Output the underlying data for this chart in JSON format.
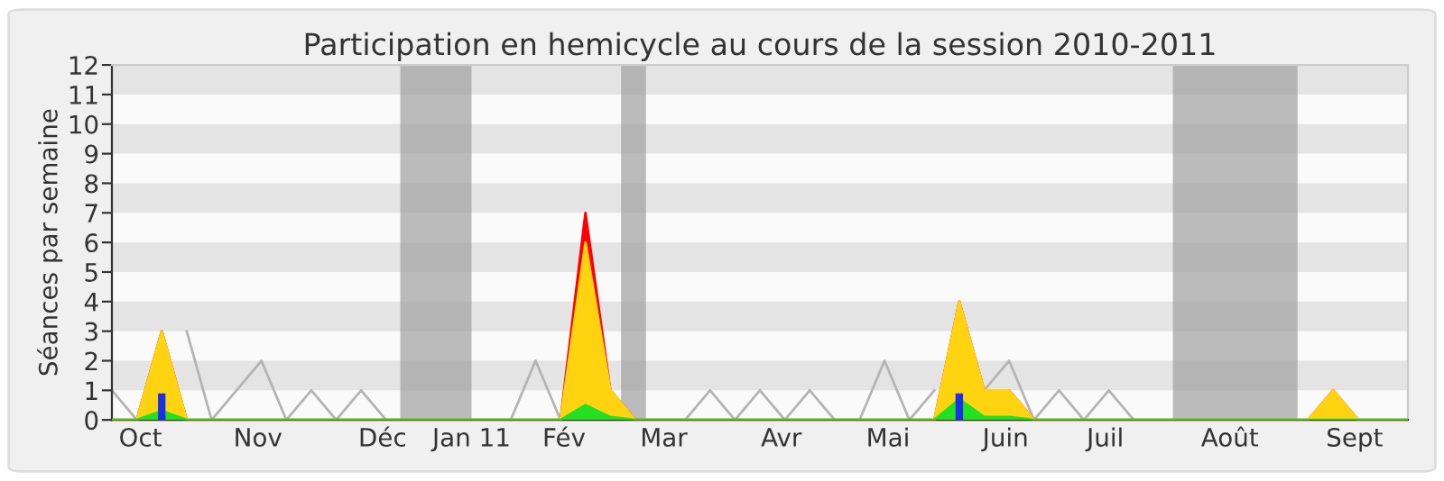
{
  "chart_data": {
    "type": "area",
    "title": "Participation en hemicycle au cours de la session 2010-2011",
    "ylabel": "Séances par semaine",
    "x": [
      "2010-09-27",
      "2010-10-04",
      "2010-10-11",
      "2010-10-18",
      "2010-10-25",
      "2010-11-01",
      "2010-11-08",
      "2010-11-15",
      "2010-11-22",
      "2010-11-29",
      "2010-12-06",
      "2010-12-13",
      "2010-12-20",
      "2010-12-27",
      "2011-01-03",
      "2011-01-10",
      "2011-01-17",
      "2011-01-24",
      "2011-01-31",
      "2011-02-07",
      "2011-02-14",
      "2011-02-21",
      "2011-02-28",
      "2011-03-07",
      "2011-03-14",
      "2011-03-21",
      "2011-03-28",
      "2011-04-04",
      "2011-04-11",
      "2011-04-18",
      "2011-04-25",
      "2011-05-02",
      "2011-05-09",
      "2011-05-16",
      "2011-05-23",
      "2011-05-30",
      "2011-06-06",
      "2011-06-13",
      "2011-06-20",
      "2011-06-27",
      "2011-07-04",
      "2011-07-11",
      "2011-07-18",
      "2011-07-25",
      "2011-08-01",
      "2011-08-08",
      "2011-08-15",
      "2011-08-22",
      "2011-08-29",
      "2011-09-05",
      "2011-09-12",
      "2011-09-19",
      "2011-09-26"
    ],
    "series": [
      {
        "type": "line",
        "color": "#b4b4b4",
        "values": [
          1,
          0,
          null,
          3,
          0,
          1,
          2,
          0,
          1,
          0,
          1,
          0,
          0,
          0,
          0,
          0,
          0,
          2,
          0,
          null,
          0,
          0,
          0,
          0,
          1,
          0,
          1,
          0,
          1,
          0,
          0,
          2,
          0,
          1,
          null,
          1,
          2,
          0,
          1,
          0,
          1,
          0,
          null,
          null,
          null,
          null,
          null,
          null,
          null,
          null,
          null,
          null,
          null
        ]
      },
      {
        "color": "#ff0000",
        "values": [
          0,
          0,
          3,
          0,
          0,
          0,
          0,
          0,
          0,
          0,
          0,
          0,
          0,
          0,
          0,
          0,
          0,
          0,
          0,
          7,
          1,
          0,
          0,
          0,
          0,
          0,
          0,
          0,
          0,
          0,
          0,
          0,
          0,
          0,
          4,
          1,
          1,
          0,
          0,
          0,
          0,
          0,
          0,
          0,
          0,
          0,
          0,
          0,
          0,
          1,
          0,
          0,
          0
        ]
      },
      {
        "color": "#ffd30f",
        "values": [
          0,
          0,
          3,
          0,
          0,
          0,
          0,
          0,
          0,
          0,
          0,
          0,
          0,
          0,
          0,
          0,
          0,
          0,
          0,
          6,
          1,
          0,
          0,
          0,
          0,
          0,
          0,
          0,
          0,
          0,
          0,
          0,
          0,
          0,
          4,
          1,
          1,
          0,
          0,
          0,
          0,
          0,
          0,
          0,
          0,
          0,
          0,
          0,
          0,
          1,
          0,
          0,
          0
        ]
      },
      {
        "color": "#22e022",
        "values": [
          0,
          0,
          0.3,
          0,
          0,
          0,
          0,
          0,
          0,
          0,
          0,
          0,
          0,
          0,
          0,
          0,
          0,
          0,
          0,
          0.5,
          0.1,
          0,
          0,
          0,
          0,
          0,
          0,
          0,
          0,
          0,
          0,
          0,
          0,
          0,
          0.7,
          0.1,
          0.1,
          0,
          0,
          0,
          0,
          0,
          0,
          0,
          0,
          0,
          0,
          0,
          0,
          0,
          0,
          0,
          0
        ]
      },
      {
        "type": "bar",
        "color": "#1a2fe8",
        "values": [
          0,
          0,
          0.9,
          0,
          0,
          0,
          0,
          0,
          0,
          0,
          0,
          0,
          0,
          0,
          0,
          0,
          0,
          0,
          0,
          0,
          0,
          0,
          0,
          0,
          0,
          0,
          0,
          0,
          0,
          0,
          0,
          0,
          0,
          0,
          0.9,
          0,
          0,
          0,
          0,
          0,
          0,
          0,
          0,
          0,
          0,
          0,
          0,
          0,
          0,
          0,
          0,
          0,
          0
        ]
      }
    ],
    "bands": [
      {
        "axis": "x",
        "from": "2010-12-17",
        "to": "2011-01-06",
        "color": "#a0a0a0"
      },
      {
        "axis": "x",
        "from": "2011-02-17",
        "to": "2011-02-24",
        "color": "#a0a0a0"
      },
      {
        "axis": "x",
        "from": "2011-07-22",
        "to": "2011-08-26",
        "color": "#a0a0a0"
      }
    ],
    "xlim": [
      "2010-09-27",
      "2011-09-26"
    ],
    "xticks": [
      {
        "value": "2010-10-05",
        "label": "Oct"
      },
      {
        "value": "2010-11-07",
        "label": "Nov"
      },
      {
        "value": "2010-12-12",
        "label": "Déc"
      },
      {
        "value": "2011-01-06",
        "label": "Jan 11"
      },
      {
        "value": "2011-02-01",
        "label": "Fév"
      },
      {
        "value": "2011-03-01",
        "label": "Mar"
      },
      {
        "value": "2011-04-03",
        "label": "Avr"
      },
      {
        "value": "2011-05-03",
        "label": "Mai"
      },
      {
        "value": "2011-06-05",
        "label": "Juin"
      },
      {
        "value": "2011-07-03",
        "label": "Juil"
      },
      {
        "value": "2011-08-07",
        "label": "Août"
      },
      {
        "value": "2011-09-11",
        "label": "Sept"
      }
    ],
    "ylim": [
      0,
      12
    ],
    "yticks": [
      0,
      1,
      2,
      3,
      4,
      5,
      6,
      7,
      8,
      9,
      10,
      11,
      12
    ]
  }
}
